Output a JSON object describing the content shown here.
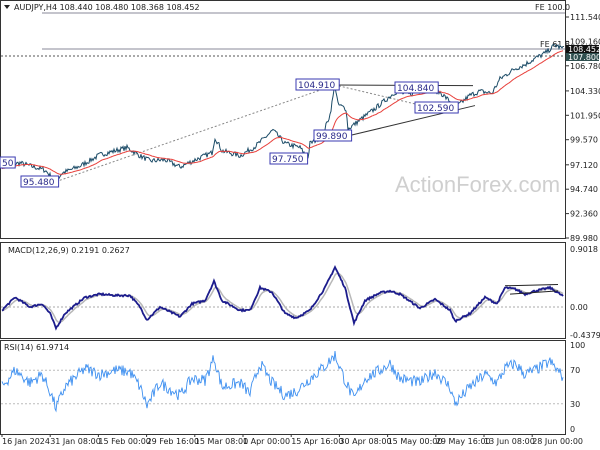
{
  "header": {
    "symbol_line": "AUDJPY,H4  108.440 108.480 108.368 108.452"
  },
  "watermark": "ActionForex.com",
  "colors": {
    "price": "#1a4a66",
    "ma": "#e8413c",
    "macd": "#1c1c8c",
    "signal": "#b8b8b8",
    "rsi": "#3d8ff0",
    "label_border": "#3a3ab0"
  },
  "chart_data": [
    {
      "type": "line",
      "title": "AUDJPY,H4",
      "x_unit": "bar index",
      "ylim": [
        89.98,
        111.54
      ],
      "y_ticks": [
        "111.540",
        "109.160",
        "106.780",
        "104.330",
        "101.950",
        "99.570",
        "97.120",
        "94.740",
        "92.360",
        "89.980"
      ],
      "x_ticks": [
        "16 Jan 2024",
        "31 Jan 08:00",
        "15 Feb 00:00",
        "29 Feb 16:00",
        "15 Mar 08:00",
        "1 Apr 00:00",
        "15 Apr 16:00",
        "30 Apr 08:00",
        "15 May 00:00",
        "29 May 16:00",
        "13 Jun 08:00",
        "28 Jun 00:00"
      ],
      "price_series": [
        [
          0,
          97.0
        ],
        [
          18,
          97.3
        ],
        [
          43,
          96.6
        ],
        [
          54,
          95.5
        ],
        [
          60,
          96.3
        ],
        [
          78,
          97.0
        ],
        [
          98,
          98.1
        ],
        [
          125,
          98.8
        ],
        [
          138,
          98.0
        ],
        [
          148,
          97.5
        ],
        [
          163,
          97.6
        ],
        [
          178,
          96.9
        ],
        [
          193,
          97.6
        ],
        [
          210,
          98.3
        ],
        [
          213,
          99.8
        ],
        [
          220,
          98.5
        ],
        [
          238,
          98.0
        ],
        [
          253,
          98.9
        ],
        [
          260,
          99.5
        ],
        [
          271,
          100.5
        ],
        [
          283,
          99.2
        ],
        [
          298,
          98.8
        ],
        [
          306,
          97.75
        ],
        [
          308,
          99.2
        ],
        [
          320,
          99.9
        ],
        [
          328,
          102.0
        ],
        [
          333,
          104.91
        ],
        [
          336,
          103.0
        ],
        [
          344,
          102.6
        ],
        [
          346,
          100.6
        ],
        [
          358,
          101.5
        ],
        [
          373,
          102.6
        ],
        [
          393,
          104.2
        ],
        [
          408,
          104.0
        ],
        [
          423,
          104.5
        ],
        [
          438,
          104.2
        ],
        [
          448,
          103.3
        ],
        [
          452,
          102.59
        ],
        [
          468,
          103.9
        ],
        [
          478,
          104.3
        ],
        [
          490,
          104.1
        ],
        [
          498,
          105.5
        ],
        [
          513,
          106.5
        ],
        [
          523,
          106.9
        ],
        [
          533,
          107.5
        ],
        [
          543,
          108.0
        ],
        [
          548,
          108.4
        ],
        [
          553,
          108.8
        ],
        [
          561,
          108.452
        ]
      ],
      "annotations": [
        "104.910",
        "104.840",
        "102.590",
        "99.890",
        "97.750",
        "95.480",
        "50"
      ],
      "levels": [
        {
          "label": "FE 100.0",
          "value": 112.7
        },
        {
          "label": "FE 61.8",
          "value": 108.8
        },
        {
          "label": "108.452",
          "value": 108.452
        },
        {
          "label": "107.800",
          "value": 107.8
        }
      ]
    },
    {
      "type": "line",
      "title": "MACD(12,26,9) 0.2191 0.2627",
      "ylim": [
        -0.4379,
        0.9018
      ],
      "y_ticks": [
        "0.9018",
        "0.00",
        "-0.4379"
      ],
      "series": [
        [
          0,
          -0.05
        ],
        [
          13,
          0.15
        ],
        [
          28,
          0.0
        ],
        [
          40,
          0.05
        ],
        [
          48,
          -0.1
        ],
        [
          54,
          -0.33
        ],
        [
          63,
          -0.1
        ],
        [
          83,
          0.15
        ],
        [
          98,
          0.2
        ],
        [
          113,
          0.18
        ],
        [
          128,
          0.18
        ],
        [
          138,
          0.0
        ],
        [
          145,
          -0.2
        ],
        [
          158,
          0.0
        ],
        [
          178,
          -0.15
        ],
        [
          190,
          0.05
        ],
        [
          203,
          0.1
        ],
        [
          212,
          0.4
        ],
        [
          220,
          0.1
        ],
        [
          238,
          -0.05
        ],
        [
          248,
          -0.05
        ],
        [
          258,
          0.3
        ],
        [
          270,
          0.23
        ],
        [
          283,
          -0.1
        ],
        [
          294,
          -0.17
        ],
        [
          308,
          -0.05
        ],
        [
          323,
          0.3
        ],
        [
          333,
          0.62
        ],
        [
          343,
          0.3
        ],
        [
          352,
          -0.25
        ],
        [
          363,
          0.1
        ],
        [
          378,
          0.22
        ],
        [
          388,
          0.25
        ],
        [
          398,
          0.2
        ],
        [
          418,
          -0.02
        ],
        [
          433,
          0.12
        ],
        [
          448,
          -0.05
        ],
        [
          453,
          -0.22
        ],
        [
          468,
          -0.1
        ],
        [
          483,
          0.15
        ],
        [
          495,
          0.05
        ],
        [
          503,
          0.3
        ],
        [
          513,
          0.28
        ],
        [
          523,
          0.2
        ],
        [
          533,
          0.25
        ],
        [
          548,
          0.3
        ],
        [
          561,
          0.17
        ]
      ]
    },
    {
      "type": "line",
      "title": "RSI(14) 61.9714",
      "ylim": [
        0,
        100
      ],
      "y_ticks": [
        "100",
        "70",
        "30",
        "0"
      ],
      "series": [
        [
          0,
          50
        ],
        [
          13,
          70
        ],
        [
          28,
          55
        ],
        [
          40,
          65
        ],
        [
          48,
          45
        ],
        [
          54,
          25
        ],
        [
          63,
          50
        ],
        [
          83,
          72
        ],
        [
          98,
          65
        ],
        [
          113,
          70
        ],
        [
          128,
          68
        ],
        [
          138,
          50
        ],
        [
          145,
          28
        ],
        [
          158,
          55
        ],
        [
          178,
          40
        ],
        [
          190,
          60
        ],
        [
          203,
          58
        ],
        [
          212,
          85
        ],
        [
          220,
          50
        ],
        [
          238,
          55
        ],
        [
          248,
          42
        ],
        [
          258,
          78
        ],
        [
          270,
          55
        ],
        [
          283,
          40
        ],
        [
          294,
          45
        ],
        [
          308,
          60
        ],
        [
          323,
          75
        ],
        [
          333,
          88
        ],
        [
          343,
          58
        ],
        [
          352,
          35
        ],
        [
          363,
          60
        ],
        [
          378,
          70
        ],
        [
          388,
          78
        ],
        [
          398,
          60
        ],
        [
          418,
          55
        ],
        [
          433,
          68
        ],
        [
          448,
          50
        ],
        [
          453,
          30
        ],
        [
          468,
          50
        ],
        [
          483,
          65
        ],
        [
          495,
          55
        ],
        [
          503,
          72
        ],
        [
          513,
          78
        ],
        [
          523,
          65
        ],
        [
          533,
          70
        ],
        [
          548,
          80
        ],
        [
          561,
          62
        ]
      ]
    }
  ]
}
